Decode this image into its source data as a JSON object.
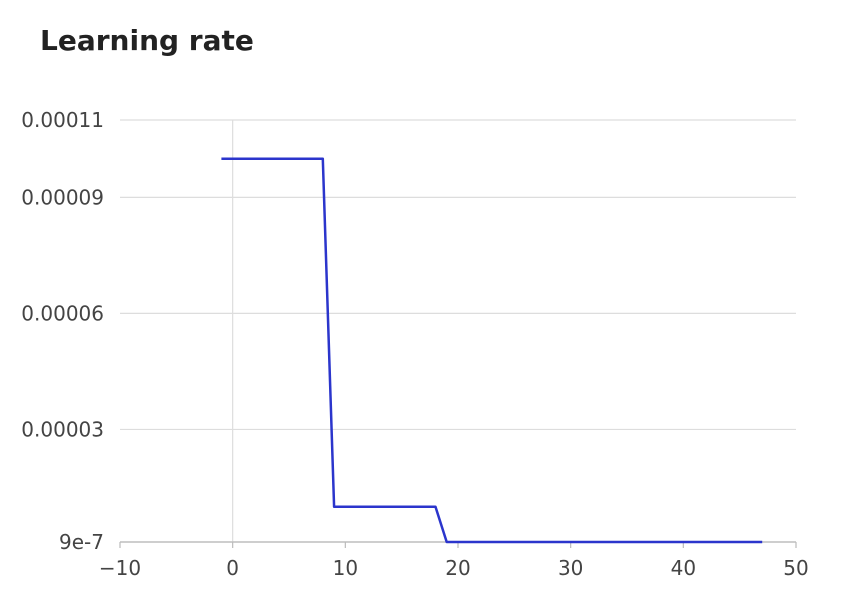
{
  "chart_data": {
    "type": "line",
    "title": "Learning rate",
    "xlabel": "",
    "ylabel": "",
    "grid": true,
    "xlim": [
      -10,
      50
    ],
    "ylim": [
      9e-07,
      0.00011
    ],
    "x_ticks": [
      -10,
      0,
      10,
      20,
      30,
      40,
      50
    ],
    "x_tick_labels": [
      "−10",
      "0",
      "10",
      "20",
      "30",
      "40",
      "50"
    ],
    "y_ticks": [
      9e-07,
      3e-05,
      6e-05,
      9e-05,
      0.00011
    ],
    "y_tick_labels": [
      "9e-7",
      "0.00003",
      "0.00006",
      "0.00009",
      "0.00011"
    ],
    "series": [
      {
        "color": "#2b35cc",
        "x": [
          -1,
          8,
          9,
          18,
          19,
          47
        ],
        "y": [
          0.0001,
          0.0001,
          1e-05,
          1e-05,
          9e-07,
          9e-07
        ]
      }
    ]
  }
}
